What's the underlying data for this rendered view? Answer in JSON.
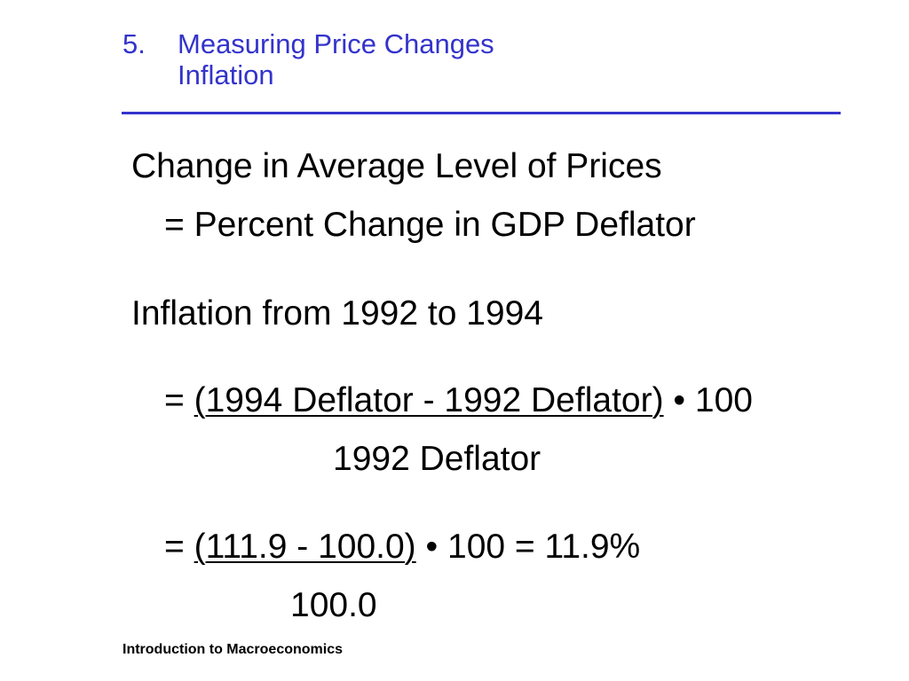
{
  "slide": {
    "title_number": "5.",
    "title_line1": "Measuring Price Changes",
    "title_line2": "Inflation",
    "accent_color": "#3333cc"
  },
  "definition": {
    "heading": "Change in Average Level of Prices",
    "equals": "=",
    "result": "Percent Change in GDP Deflator"
  },
  "example": {
    "heading": "Inflation from 1992 to 1994",
    "formula": {
      "equals": "=",
      "numerator": "(1994 Deflator - 1992 Deflator)",
      "multiplier": "• 100",
      "denominator": "1992 Deflator"
    },
    "calculation": {
      "equals": "=",
      "numerator": "(111.9 - 100.0)",
      "multiplier": "• 100 = 11.9%",
      "denominator": "100.0"
    }
  },
  "footer": {
    "text": "Introduction to Macroeconomics"
  }
}
